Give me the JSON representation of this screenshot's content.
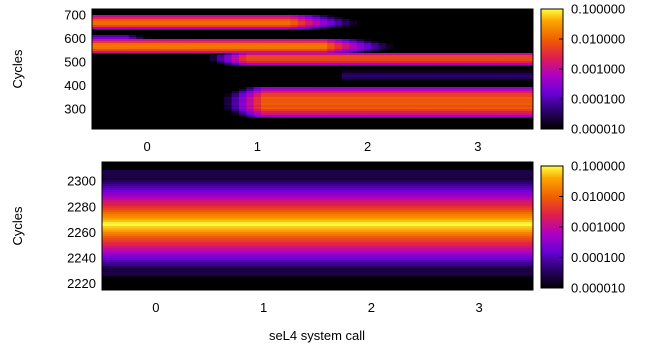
{
  "chart_data": [
    {
      "type": "heatmap",
      "panel": "top",
      "xlabel": "",
      "ylabel": "Cycles",
      "xlim": [
        -0.5,
        3.5
      ],
      "ylim": [
        215,
        725
      ],
      "x_ticks": [
        "0",
        "1",
        "2",
        "3"
      ],
      "x_tick_values": [
        0,
        1,
        2,
        3
      ],
      "y_ticks": [
        "300",
        "400",
        "500",
        "600",
        "700"
      ],
      "y_tick_values": [
        300,
        400,
        500,
        600,
        700
      ],
      "colorbar": {
        "scale": "log",
        "ticks": [
          "0.100000",
          "0.010000",
          "0.001000",
          "0.000100",
          "0.000010"
        ],
        "tick_values": [
          0.1,
          0.01,
          0.001,
          0.0001,
          1e-05
        ]
      },
      "bands": [
        {
          "x_start": -0.5,
          "x_end": 1.3,
          "fade_to": 1.9,
          "y_low": 640,
          "y_high": 700,
          "peak": 0.012
        },
        {
          "x_start": -0.5,
          "x_end": -0.2,
          "fade_to": 0.3,
          "y_low": 598,
          "y_high": 612,
          "peak": 0.0005
        },
        {
          "x_start": -0.5,
          "x_end": 1.6,
          "fade_to": 2.2,
          "y_low": 535,
          "y_high": 598,
          "peak": 0.015
        },
        {
          "x_start": 0.9,
          "x_end": 3.5,
          "fade_to": 3.5,
          "y_low": 490,
          "y_high": 540,
          "peak": 0.01
        },
        {
          "x_start": 1.8,
          "x_end": 3.5,
          "fade_to": 3.5,
          "y_low": 400,
          "y_high": 490,
          "peak": 3e-05
        },
        {
          "x_start": 1.05,
          "x_end": 3.5,
          "fade_to": 3.5,
          "y_low": 268,
          "y_high": 390,
          "peak": 0.012
        }
      ]
    },
    {
      "type": "heatmap",
      "panel": "bottom",
      "xlabel": "seL4 system call",
      "ylabel": "Cycles",
      "xlim": [
        -0.5,
        3.5
      ],
      "ylim": [
        2215,
        2315
      ],
      "x_ticks": [
        "0",
        "1",
        "2",
        "3"
      ],
      "x_tick_values": [
        0,
        1,
        2,
        3
      ],
      "y_ticks": [
        "2220",
        "2240",
        "2260",
        "2280",
        "2300"
      ],
      "y_tick_values": [
        2220,
        2240,
        2260,
        2280,
        2300
      ],
      "colorbar": {
        "scale": "log",
        "ticks": [
          "0.100000",
          "0.010000",
          "0.001000",
          "0.000100",
          "0.000010"
        ],
        "tick_values": [
          0.1,
          0.01,
          0.001,
          0.0001,
          1e-05
        ]
      },
      "distribution": {
        "center": 2266,
        "peak": 0.1,
        "uniform_in_x": true
      }
    }
  ]
}
